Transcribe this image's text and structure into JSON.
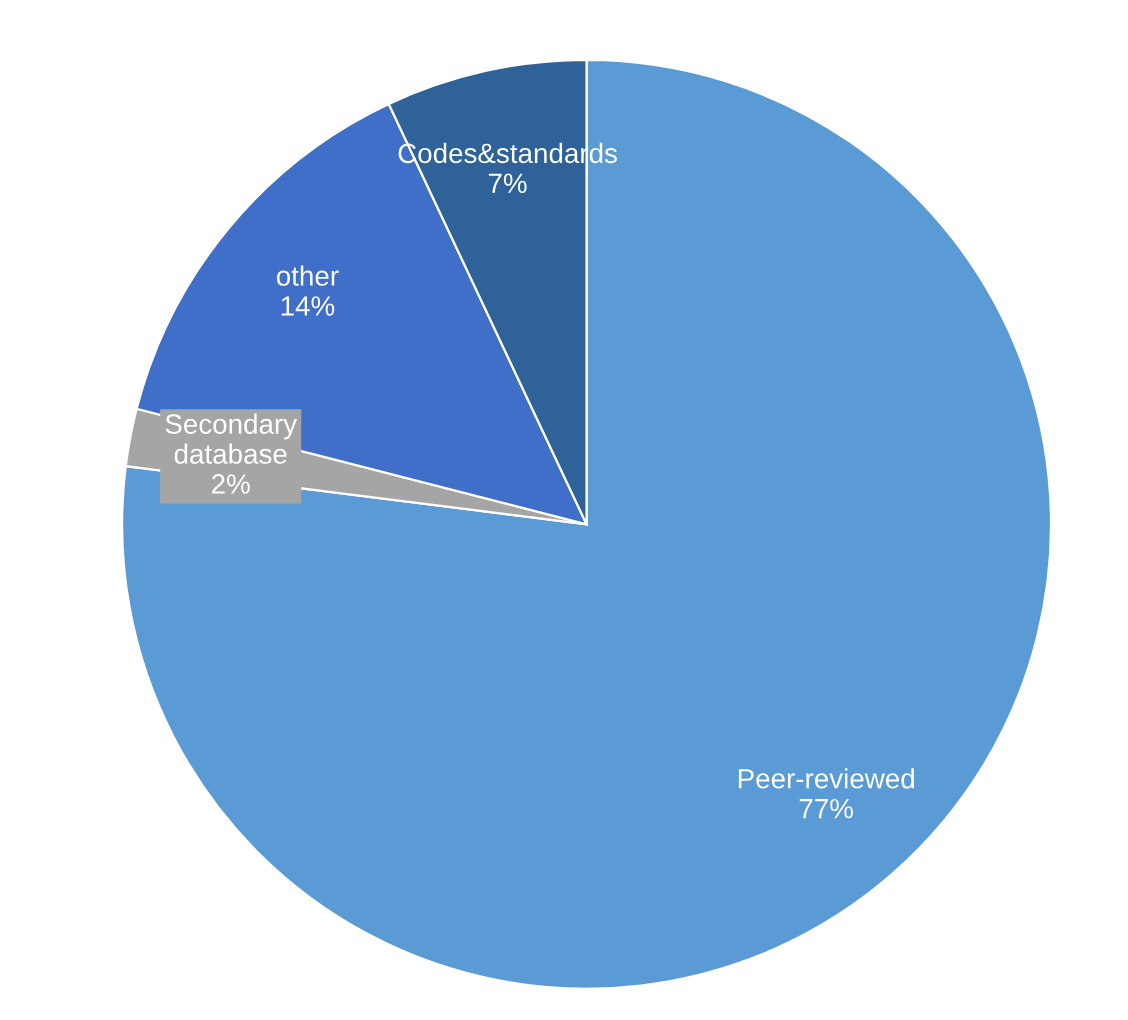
{
  "chart_data": {
    "type": "pie",
    "categories": [
      "Peer-reviewed",
      "Secondary database",
      "other",
      "Codes&standards"
    ],
    "values": [
      77,
      2,
      14,
      7
    ],
    "value_labels": [
      "77%",
      "2%",
      "14%",
      "7%"
    ],
    "colors": [
      "#5b9bd5",
      "#a5a5a5",
      "#3f6fc8",
      "#2f6298"
    ]
  }
}
